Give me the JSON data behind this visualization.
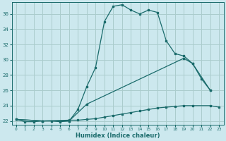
{
  "xlabel": "Humidex (Indice chaleur)",
  "bg_color": "#cce8ee",
  "grid_color": "#aacccc",
  "line_color": "#1a6b6b",
  "ylim": [
    21.5,
    37.5
  ],
  "xlim": [
    -0.5,
    23.5
  ],
  "yticks": [
    22,
    24,
    26,
    28,
    30,
    32,
    34,
    36
  ],
  "xticks": [
    0,
    1,
    2,
    3,
    4,
    5,
    6,
    7,
    8,
    9,
    10,
    11,
    12,
    13,
    14,
    15,
    16,
    17,
    18,
    19,
    20,
    21,
    22,
    23
  ],
  "curve1_x": [
    0,
    1,
    2,
    3,
    4,
    5,
    6,
    7,
    8,
    9,
    10,
    11,
    12,
    13,
    14,
    15,
    16,
    17,
    18,
    19,
    20,
    21,
    22
  ],
  "curve1_y": [
    22.2,
    21.9,
    21.9,
    22.0,
    22.0,
    21.9,
    22.0,
    23.5,
    26.5,
    29.0,
    35.0,
    37.0,
    37.2,
    36.5,
    36.0,
    36.5,
    36.2,
    32.5,
    30.8,
    30.5,
    29.5,
    27.5,
    26.0
  ],
  "curve2_x": [
    0,
    3,
    6,
    8,
    19,
    20,
    22
  ],
  "curve2_y": [
    22.2,
    22.0,
    22.0,
    24.2,
    30.2,
    29.5,
    26.0
  ],
  "curve3_x": [
    0,
    3,
    6,
    7,
    8,
    9,
    10,
    11,
    12,
    13,
    14,
    15,
    16,
    17,
    18,
    19,
    20,
    22,
    23
  ],
  "curve3_y": [
    22.2,
    22.0,
    22.1,
    22.1,
    22.2,
    22.3,
    22.5,
    22.7,
    22.9,
    23.1,
    23.3,
    23.5,
    23.7,
    23.8,
    23.9,
    24.0,
    24.0,
    24.0,
    23.8
  ]
}
